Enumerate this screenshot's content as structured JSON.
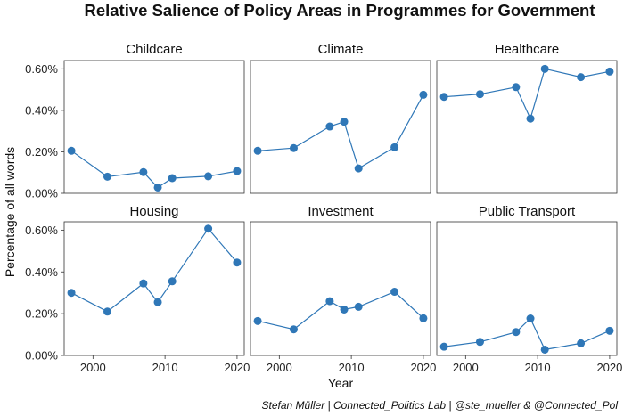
{
  "chart_data": {
    "type": "line",
    "title": "Relative Salience of Policy Areas in Programmes for Government",
    "xlabel": "Year",
    "ylabel": "Percentage of all words",
    "caption": "Stefan Müller | Connected_Politics Lab | @ste_mueller & @Connected_Pol",
    "x": [
      1997,
      2002,
      2007,
      2009,
      2011,
      2016,
      2020
    ],
    "xlim": [
      1996,
      2021
    ],
    "ylim": [
      0,
      0.0064
    ],
    "x_ticks": [
      2000,
      2010,
      2020
    ],
    "x_tick_labels": [
      "2000",
      "2010",
      "2020"
    ],
    "y_ticks": [
      0,
      0.002,
      0.004,
      0.006
    ],
    "y_tick_labels": [
      "0.00%",
      "0.20%",
      "0.40%",
      "0.60%"
    ],
    "grid": false,
    "line_color": "#2f77b7",
    "point_color": "#2f77b7",
    "panels": [
      {
        "name": "Childcare",
        "values": [
          0.00205,
          0.0008,
          0.00102,
          0.00028,
          0.00073,
          0.00082,
          0.00107
        ]
      },
      {
        "name": "Climate",
        "values": [
          0.00205,
          0.00218,
          0.00322,
          0.00345,
          0.0012,
          0.00222,
          0.00475
        ]
      },
      {
        "name": "Healthcare",
        "values": [
          0.00465,
          0.00478,
          0.00512,
          0.0036,
          0.006,
          0.0056,
          0.00587
        ]
      },
      {
        "name": "Housing",
        "values": [
          0.003,
          0.0021,
          0.00345,
          0.00255,
          0.00355,
          0.00607,
          0.00445
        ]
      },
      {
        "name": "Investment",
        "values": [
          0.00165,
          0.00125,
          0.0026,
          0.0022,
          0.00233,
          0.00305,
          0.00178
        ]
      },
      {
        "name": "Public Transport",
        "values": [
          0.00042,
          0.00065,
          0.00112,
          0.00177,
          0.00028,
          0.00058,
          0.00118
        ]
      }
    ]
  }
}
